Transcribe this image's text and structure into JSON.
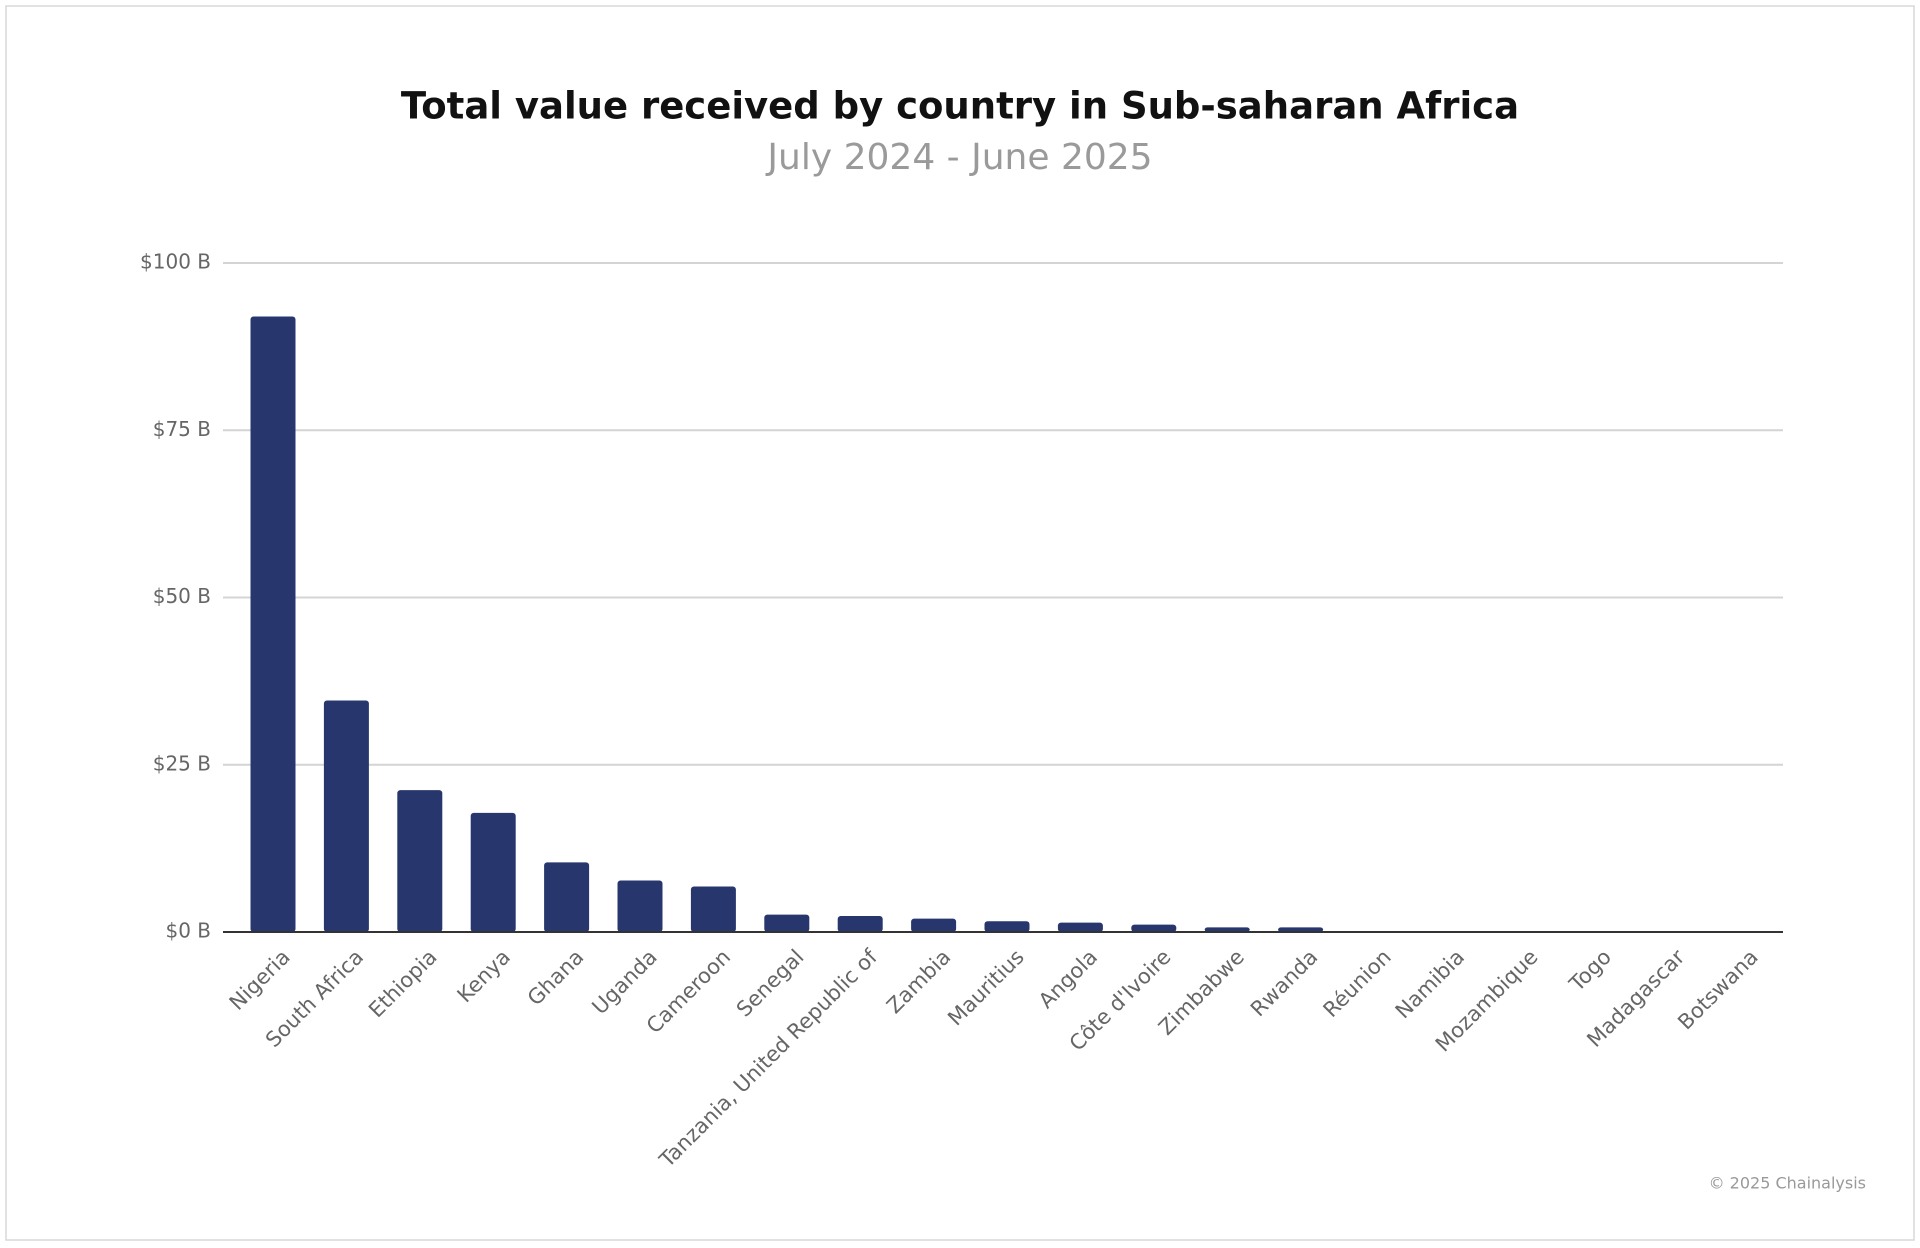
{
  "chart_data": {
    "type": "bar",
    "title": "Total value received by country in Sub-saharan Africa",
    "subtitle": "July 2024 - June 2025",
    "source": "© 2025 Chainalysis",
    "categories": [
      "Nigeria",
      "South Africa",
      "Ethiopia",
      "Kenya",
      "Ghana",
      "Uganda",
      "Cameroon",
      "Senegal",
      "Tanzania, United Republic of",
      "Zambia",
      "Mauritius",
      "Angola",
      "Côte d'Ivoire",
      "Zimbabwe",
      "Rwanda",
      "Réunion",
      "Namibia",
      "Mozambique",
      "Togo",
      "Madagascar",
      "Botswana"
    ],
    "values": [
      92,
      34.6,
      21.2,
      17.8,
      10.4,
      7.7,
      6.8,
      2.6,
      2.4,
      2.0,
      1.6,
      1.4,
      1.1,
      0.7,
      0.7,
      0.1,
      0.1,
      0.05,
      0.02,
      0.02,
      0.01
    ],
    "color": "#27376d",
    "ylim": [
      0,
      100
    ],
    "yticks": [
      {
        "value": 0,
        "label": "$0 B"
      },
      {
        "value": 25,
        "label": "$25 B"
      },
      {
        "value": 50,
        "label": "$50 B"
      },
      {
        "value": 75,
        "label": "$75 B"
      },
      {
        "value": 100,
        "label": "$100 B"
      }
    ],
    "grid": true
  }
}
